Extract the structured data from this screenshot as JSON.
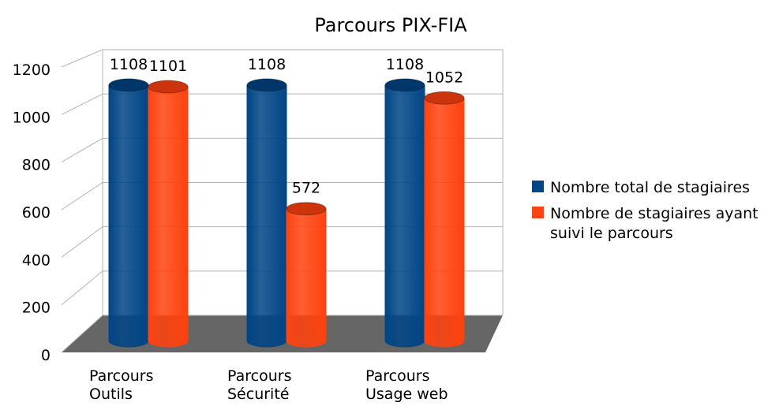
{
  "chart_data": {
    "type": "bar",
    "title": "Parcours PIX-FIA",
    "categories": [
      "Parcours Outils",
      "Parcours Sécurité",
      "Parcours Usage web"
    ],
    "series": [
      {
        "name": "Nombre total de stagiaires",
        "color": "#004586",
        "values": [
          1108,
          1108,
          1108
        ]
      },
      {
        "name": "Nombre de stagiaires ayant suivi le parcours",
        "color": "#ff420e",
        "values": [
          1101,
          572,
          1052
        ]
      }
    ],
    "ylim": [
      0,
      1200
    ],
    "yticks": [
      0,
      200,
      400,
      600,
      800,
      1000,
      1200
    ],
    "grid": true,
    "legend": "right"
  }
}
